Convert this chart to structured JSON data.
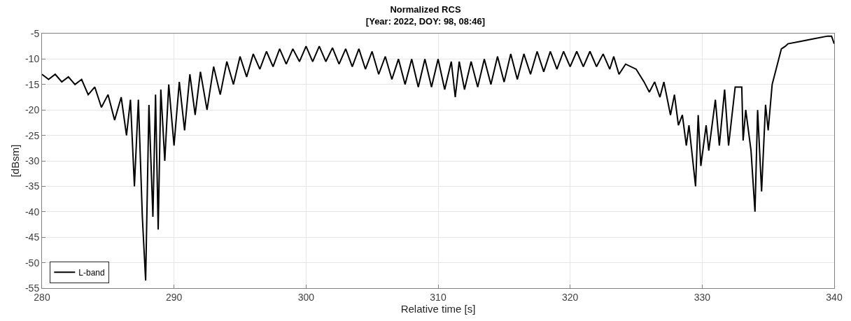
{
  "chart_data": {
    "type": "line",
    "title": "Normalized RCS",
    "subtitle": "[Year: 2022, DOY: 98, 08:46]",
    "xlabel": "Relative time [s]",
    "ylabel": "[dBsm]",
    "xlim": [
      280,
      340
    ],
    "xticks": [
      280,
      290,
      300,
      310,
      320,
      330,
      340
    ],
    "ylim": [
      -55,
      -5
    ],
    "yticks": [
      -55,
      -50,
      -45,
      -40,
      -35,
      -30,
      -25,
      -20,
      -15,
      -10,
      -5
    ],
    "grid": true,
    "legend": "bottom left",
    "line_style": "solid",
    "series": [
      {
        "name": "L-band",
        "color": "#000000",
        "x": [
          280,
          280.5,
          281,
          281.5,
          282,
          282.5,
          283,
          283.5,
          284,
          284.5,
          285,
          285.5,
          286,
          286.4,
          286.7,
          287,
          287.3,
          287.6,
          287.85,
          288.1,
          288.4,
          288.6,
          288.8,
          289,
          289.3,
          289.6,
          290,
          290.4,
          290.8,
          291.2,
          291.6,
          292,
          292.5,
          293,
          293.5,
          294,
          294.5,
          295,
          295.5,
          296,
          296.5,
          297,
          297.5,
          298,
          298.5,
          299,
          299.5,
          300,
          300.5,
          301,
          301.5,
          302,
          302.5,
          303,
          303.5,
          304,
          304.5,
          305,
          305.5,
          306,
          306.5,
          307,
          307.5,
          308,
          308.5,
          309,
          309.5,
          310,
          310.5,
          311,
          311.3,
          311.6,
          312,
          312.5,
          313,
          313.5,
          314,
          314.5,
          315,
          315.5,
          316,
          316.5,
          317,
          317.5,
          318,
          318.5,
          319,
          319.5,
          320,
          320.5,
          321,
          321.5,
          322,
          322.5,
          323,
          323.3,
          323.7,
          324.2,
          325,
          325.6,
          326,
          326.4,
          326.8,
          327.1,
          327.6,
          327.9,
          328.2,
          328.5,
          328.8,
          329.0,
          329.5,
          329.7,
          329.9,
          330.3,
          330.5,
          331,
          331.3,
          331.7,
          332,
          332.5,
          333,
          333.1,
          333.3,
          333.7,
          334,
          334.2,
          334.5,
          334.8,
          335,
          335.3,
          335.5,
          336,
          336.3,
          336.5,
          337.5,
          338.5,
          339.5,
          339.8,
          340
        ],
        "values": [
          -13,
          -14,
          -13,
          -14.5,
          -13.5,
          -15,
          -14,
          -17,
          -15.5,
          -19.5,
          -17,
          -22,
          -17.5,
          -25,
          -18,
          -35,
          -18,
          -41,
          -53.5,
          -19,
          -41,
          -17,
          -43.5,
          -16,
          -30,
          -15,
          -27,
          -14.5,
          -24,
          -13,
          -21,
          -12.5,
          -20,
          -11.5,
          -17,
          -10.5,
          -15,
          -9.5,
          -13.5,
          -9,
          -12,
          -8.5,
          -11.5,
          -8,
          -11,
          -8,
          -10.5,
          -7.5,
          -10.5,
          -7.5,
          -10.5,
          -7.8,
          -11,
          -8,
          -11.5,
          -8,
          -12,
          -8.5,
          -13,
          -9.5,
          -14,
          -10,
          -15,
          -10,
          -15.5,
          -10,
          -15.5,
          -10,
          -16,
          -10.5,
          -17.5,
          -10.5,
          -16,
          -10.5,
          -15.5,
          -10,
          -15,
          -9.5,
          -14.5,
          -9,
          -14,
          -9,
          -13,
          -8.5,
          -12.5,
          -8.5,
          -12,
          -8.5,
          -11.5,
          -8.5,
          -11.5,
          -8.5,
          -11.5,
          -9,
          -12,
          -9.5,
          -13,
          -11,
          -12,
          -14.5,
          -16.5,
          -14.5,
          -17.5,
          -14.5,
          -21,
          -17,
          -23,
          -21,
          -27,
          -23,
          -35,
          -21,
          -31,
          -23,
          -28,
          -18,
          -27,
          -16,
          -27,
          -15.5,
          -15.5,
          -26,
          -20,
          -28,
          -40,
          -20,
          -36,
          -19,
          -24,
          -15,
          -13,
          -8,
          -7.5,
          -7,
          -6.5,
          -6,
          -5.5,
          -5.5,
          -7
        ]
      }
    ]
  }
}
